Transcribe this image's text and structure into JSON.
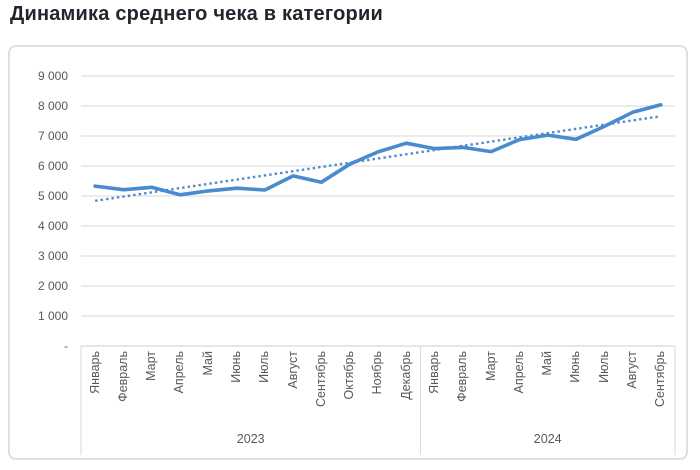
{
  "title": "Динамика среднего чека в категории",
  "chart_data": {
    "type": "line",
    "title": "Динамика среднего чека в категории",
    "categories": [
      "Январь",
      "Февраль",
      "Март",
      "Апрель",
      "Май",
      "Июнь",
      "Июль",
      "Август",
      "Сентябрь",
      "Октябрь",
      "Ноябрь",
      "Декабрь",
      "Январь",
      "Февраль",
      "Март",
      "Апрель",
      "Май",
      "Июнь",
      "Июль",
      "Август",
      "Сентябрь"
    ],
    "year_groups": [
      {
        "label": "2023",
        "count": 12
      },
      {
        "label": "2024",
        "count": 9
      }
    ],
    "values": [
      5330,
      5210,
      5290,
      5040,
      5170,
      5260,
      5200,
      5670,
      5460,
      6060,
      6470,
      6760,
      6580,
      6620,
      6480,
      6880,
      7030,
      6890,
      7320,
      7790,
      8040
    ],
    "trendline": {
      "style": "dotted",
      "start_value": 4840,
      "end_value": 7660
    },
    "ylim": [
      0,
      9000
    ],
    "ytick_step": 1000,
    "ytick_labels": [
      "-",
      "1 000",
      "2 000",
      "3 000",
      "4 000",
      "5 000",
      "6 000",
      "7 000",
      "8 000",
      "9 000"
    ],
    "grid": true,
    "legend": "none",
    "xlabel": "",
    "ylabel": "",
    "colors": {
      "series": "#4a8bd0",
      "trendline": "#4a8bd0",
      "gridline": "#dadada",
      "axis_line": "#cfcfcf",
      "axis_text": "#595959",
      "title_text": "#21252e",
      "card_border": "#dcdfe3"
    }
  }
}
